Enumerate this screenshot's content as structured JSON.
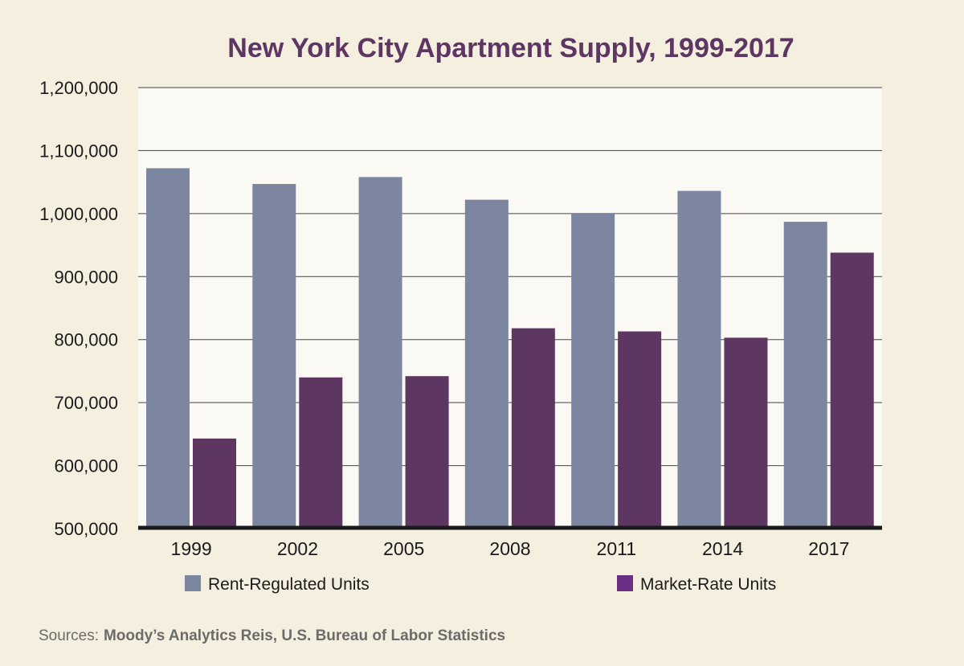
{
  "chart_data": {
    "type": "bar",
    "title": "New York City Apartment Supply, 1999-2017",
    "categories": [
      "1999",
      "2002",
      "2005",
      "2008",
      "2011",
      "2014",
      "2017"
    ],
    "series": [
      {
        "name": "Rent-Regulated Units",
        "color": "#7d86a0",
        "values": [
          1072000,
          1047000,
          1058000,
          1022000,
          1000000,
          1036000,
          987000
        ]
      },
      {
        "name": "Market-Rate Units",
        "color": "#5e3662",
        "values": [
          643000,
          740000,
          742000,
          818000,
          813000,
          803000,
          938000
        ]
      }
    ],
    "ylim": [
      500000,
      1200000
    ],
    "yticks": [
      500000,
      600000,
      700000,
      800000,
      900000,
      1000000,
      1100000,
      1200000
    ],
    "ytick_labels": [
      "500,000",
      "600,000",
      "700,000",
      "800,000",
      "900,000",
      "1,000,000",
      "1,100,000",
      "1,200,000"
    ],
    "grid": true,
    "legend": {
      "placement": "bottom",
      "entries": [
        {
          "label": "Rent-Regulated Units",
          "color": "#7d86a0"
        },
        {
          "label": "Market-Rate Units",
          "color": "#6d2f86"
        }
      ]
    }
  },
  "source": {
    "prefix": "Sources:",
    "text": "Moody’s Analytics Reis, U.S. Bureau of Labor Statistics"
  },
  "colors": {
    "background": "#f5efdf",
    "plot_background": "#fbf9f3",
    "grid": "#444444",
    "baseline": "#1a1a1a",
    "title": "#5e3663"
  }
}
